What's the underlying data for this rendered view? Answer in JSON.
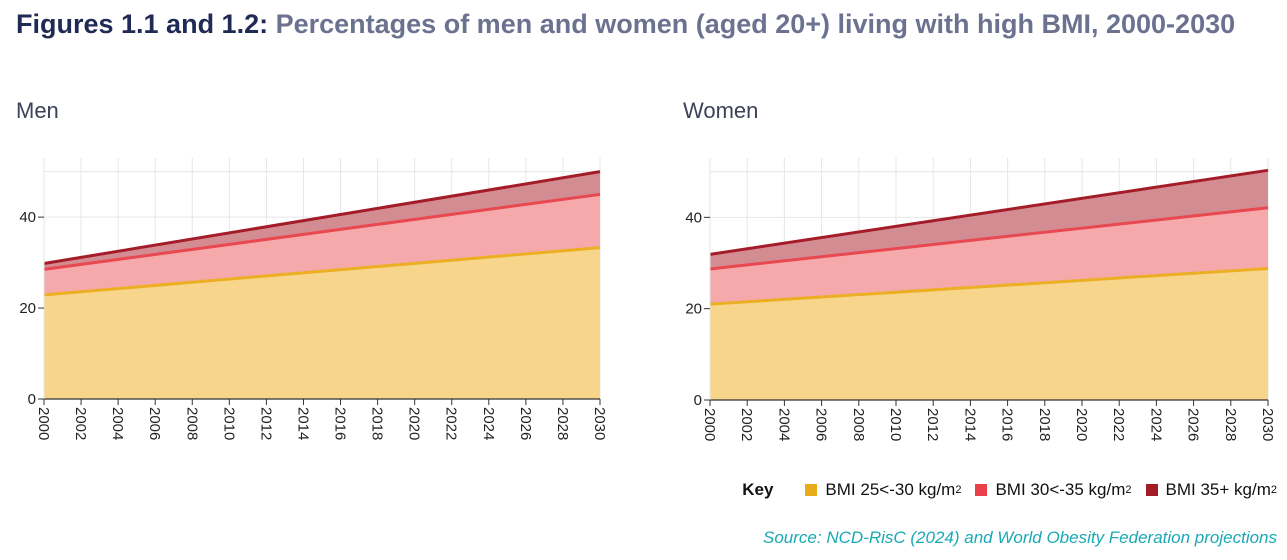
{
  "title": {
    "lead": "Figures 1.1 and 1.2:",
    "rest": "Percentages of men and women (aged 20+) living with high BMI, 2000-2030"
  },
  "legend": {
    "key_label": "Key",
    "items": [
      {
        "label": "BMI 25<-30 kg/m",
        "sup": "2",
        "color": "#e8ab1c"
      },
      {
        "label": "BMI 30<-35 kg/m",
        "sup": "2",
        "color": "#e9404a"
      },
      {
        "label": "BMI 35+ kg/m",
        "sup": "2",
        "color": "#a51c29"
      }
    ]
  },
  "source": "Source: NCD-RisC (2024) and World Obesity Federation projections",
  "colors": {
    "band1_fill": "#f7d68c",
    "band1_line": "#ecae22",
    "band2_fill": "#f5a9ab",
    "band2_line": "#e8484f",
    "band3_fill": "#d48c93",
    "band3_line": "#a51c29",
    "grid": "#e6e6e6",
    "axis": "#333333"
  },
  "chart_data": [
    {
      "type": "area",
      "title": "Men",
      "stacked_cumulative": true,
      "x": [
        2000,
        2030
      ],
      "xticks": [
        "2000",
        "2002",
        "2004",
        "2006",
        "2008",
        "2010",
        "2012",
        "2014",
        "2016",
        "2018",
        "2020",
        "2022",
        "2024",
        "2026",
        "2028",
        "2030"
      ],
      "yticks": [
        "0",
        "20",
        "40"
      ],
      "ylim": [
        0,
        53
      ],
      "series": [
        {
          "name": "BMI 25<-30 kg/m2 (top boundary)",
          "values": [
            22.9,
            33.3
          ]
        },
        {
          "name": "BMI 30<-35 kg/m2 (top boundary)",
          "values": [
            28.5,
            45.0
          ]
        },
        {
          "name": "BMI 35+ kg/m2 (top boundary)",
          "values": [
            29.8,
            50.0
          ]
        }
      ]
    },
    {
      "type": "area",
      "title": "Women",
      "stacked_cumulative": true,
      "x": [
        2000,
        2030
      ],
      "xticks": [
        "2000",
        "2002",
        "2004",
        "2006",
        "2008",
        "2010",
        "2012",
        "2014",
        "2016",
        "2018",
        "2020",
        "2022",
        "2024",
        "2026",
        "2028",
        "2030"
      ],
      "yticks": [
        "0",
        "20",
        "40"
      ],
      "ylim": [
        0,
        53
      ],
      "series": [
        {
          "name": "BMI 25<-30 kg/m2 (top boundary)",
          "values": [
            21.0,
            28.8
          ]
        },
        {
          "name": "BMI 30<-35 kg/m2 (top boundary)",
          "values": [
            28.7,
            42.1
          ]
        },
        {
          "name": "BMI 35+ kg/m2 (top boundary)",
          "values": [
            31.9,
            50.3
          ]
        }
      ]
    }
  ]
}
